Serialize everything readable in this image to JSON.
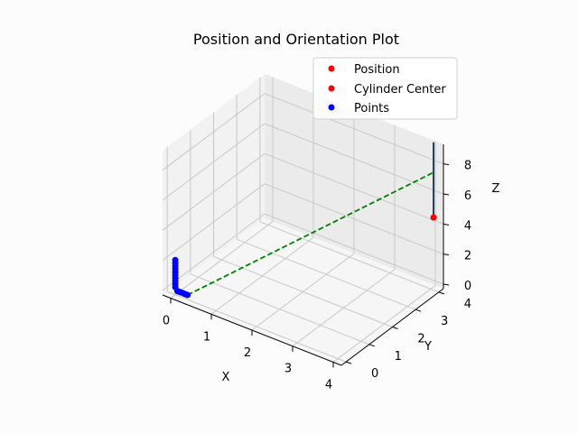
{
  "chart_data": {
    "type": "scatter",
    "projection": "3d",
    "title": "Position and Orientation Plot",
    "xlabel": "X",
    "ylabel": "Y",
    "zlabel": "Z",
    "xlim": [
      -0.2,
      4.2
    ],
    "ylim": [
      -0.2,
      4.2
    ],
    "zlim": [
      -0.3,
      9.3
    ],
    "xticks": [
      "0",
      "1",
      "2",
      "3",
      "4"
    ],
    "yticks": [
      "0",
      "1",
      "2",
      "3",
      "4"
    ],
    "zticks": [
      "0",
      "2",
      "4",
      "6",
      "8"
    ],
    "grid": true,
    "legend_position": "upper right",
    "legend": [
      {
        "label": "Position",
        "color": "#ff0000",
        "marker": "circle"
      },
      {
        "label": "Cylinder Center",
        "color": "#ff0000",
        "marker": "circle"
      },
      {
        "label": "Points",
        "color": "#0000ff",
        "marker": "circle"
      }
    ],
    "series": [
      {
        "name": "Position",
        "color": "#ff0000",
        "points": [
          [
            3.9,
            4.3,
            4.0
          ]
        ]
      },
      {
        "name": "Points",
        "color": "#0000ff",
        "points": [
          [
            0.0,
            0.0,
            0.2
          ],
          [
            0.0,
            0.0,
            0.4
          ],
          [
            0.0,
            0.0,
            0.6
          ],
          [
            0.0,
            0.0,
            0.8
          ],
          [
            0.0,
            0.0,
            1.0
          ],
          [
            0.0,
            0.0,
            1.2
          ],
          [
            0.0,
            0.0,
            1.4
          ],
          [
            0.0,
            0.0,
            1.6
          ],
          [
            0.0,
            0.0,
            1.8
          ],
          [
            0.0,
            0.0,
            2.0
          ],
          [
            0.05,
            0.0,
            0.0
          ],
          [
            0.1,
            0.0,
            0.0
          ],
          [
            0.15,
            0.0,
            0.0
          ],
          [
            0.2,
            0.0,
            0.0
          ],
          [
            0.25,
            0.0,
            0.0
          ],
          [
            0.3,
            0.0,
            0.0
          ]
        ]
      }
    ],
    "lines": [
      {
        "color": "#1f3f60",
        "style": "solid",
        "points": [
          [
            3.9,
            4.3,
            4.0
          ],
          [
            3.9,
            4.3,
            9.0
          ]
        ]
      },
      {
        "color": "#008000",
        "style": "dashed",
        "points": [
          [
            0.3,
            0.0,
            0.0
          ],
          [
            3.9,
            4.3,
            7.0
          ]
        ]
      }
    ]
  }
}
